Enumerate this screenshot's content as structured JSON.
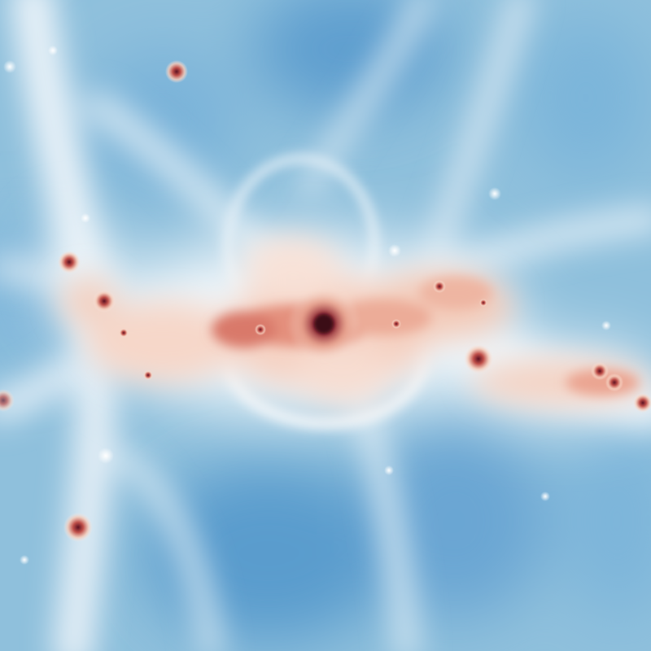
{
  "image": {
    "description_kind": "cosmological density projection",
    "colormap": {
      "low": "#5a9ccd",
      "mid_low": "#a9d0e8",
      "mid": "#eef4f8",
      "mid_high": "#f2c2ad",
      "high": "#c8574c",
      "peak": "#4a0d1e"
    },
    "background_color": "#8fc0dc"
  }
}
